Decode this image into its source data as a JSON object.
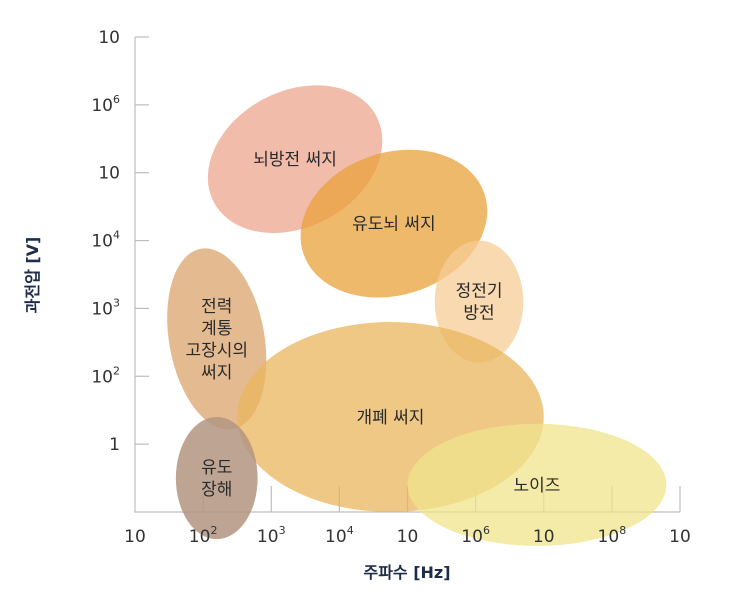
{
  "chart_data": {
    "type": "scatter",
    "xlabel": "주파수 [Hz]",
    "ylabel": "과전압 [V]",
    "x_tick_labels": [
      {
        "base": "10",
        "exp": ""
      },
      {
        "base": "10",
        "exp": "2"
      },
      {
        "base": "10",
        "exp": "3"
      },
      {
        "base": "10",
        "exp": "4"
      },
      {
        "base": "10",
        "exp": ""
      },
      {
        "base": "10",
        "exp": "6"
      },
      {
        "base": "10",
        "exp": ""
      },
      {
        "base": "10",
        "exp": "8"
      },
      {
        "base": "10",
        "exp": ""
      }
    ],
    "y_tick_labels": [
      {
        "base": "10",
        "exp": ""
      },
      {
        "base": "10",
        "exp": "6"
      },
      {
        "base": "10",
        "exp": ""
      },
      {
        "base": "10",
        "exp": "4"
      },
      {
        "base": "10",
        "exp": "3"
      },
      {
        "base": "10",
        "exp": "2"
      },
      {
        "base": "1",
        "exp": ""
      }
    ],
    "x_range_log10": [
      1,
      9
    ],
    "y_range_log10": [
      0,
      7
    ],
    "regions": [
      {
        "label_lines": [
          "뇌방전 써지"
        ],
        "color": "#eea58f",
        "opacity": 0.75,
        "x_log": [
          2.0,
          4.7
        ],
        "y_log": [
          4.2,
          6.2
        ],
        "rotation_deg": -28
      },
      {
        "label_lines": [
          "유도뇌 써지"
        ],
        "color": "#e9a23b",
        "opacity": 0.75,
        "x_log": [
          3.4,
          6.2
        ],
        "y_log": [
          3.2,
          5.3
        ],
        "rotation_deg": -18
      },
      {
        "label_lines": [
          "전력",
          "계통",
          "고장시의",
          "써지"
        ],
        "color": "#d99e62",
        "opacity": 0.7,
        "x_log": [
          1.5,
          2.9
        ],
        "y_log": [
          1.2,
          3.9
        ],
        "rotation_deg": -10
      },
      {
        "label_lines": [
          "정전기",
          "방전"
        ],
        "color": "#f6cc95",
        "opacity": 0.75,
        "x_log": [
          5.4,
          6.7
        ],
        "y_log": [
          2.2,
          4.0
        ],
        "rotation_deg": 0
      },
      {
        "label_lines": [
          "개폐 써지"
        ],
        "color": "#eab55e",
        "opacity": 0.75,
        "x_log": [
          2.5,
          7.0
        ],
        "y_log": [
          0.0,
          2.8
        ],
        "rotation_deg": 0
      },
      {
        "label_lines": [
          "노이즈"
        ],
        "color": "#f0e48c",
        "opacity": 0.75,
        "x_log": [
          5.0,
          8.8
        ],
        "y_log": [
          -0.5,
          1.3
        ],
        "rotation_deg": 0
      },
      {
        "label_lines": [
          "유도",
          "장해"
        ],
        "color": "#b39580",
        "opacity": 0.85,
        "x_log": [
          1.6,
          2.8
        ],
        "y_log": [
          -0.4,
          1.4
        ],
        "rotation_deg": 0
      }
    ]
  }
}
